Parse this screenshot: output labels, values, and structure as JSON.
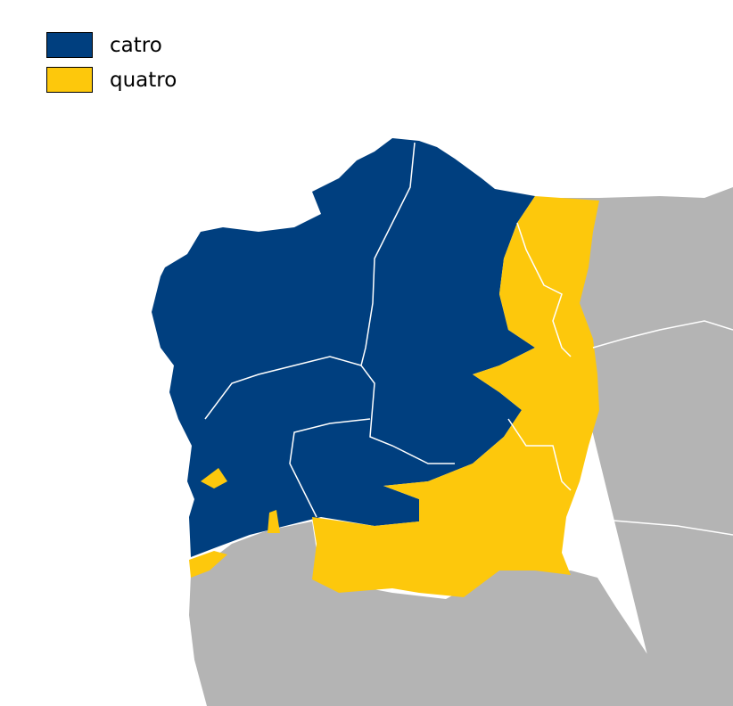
{
  "legend": {
    "items": [
      {
        "label": "catro",
        "color": "#003f7f"
      },
      {
        "label": "quatro",
        "color": "#fdc80c"
      }
    ]
  },
  "map": {
    "background_land_color": "#b4b4b4",
    "sea_color": "#ffffff",
    "border_color": "#ffffff"
  }
}
